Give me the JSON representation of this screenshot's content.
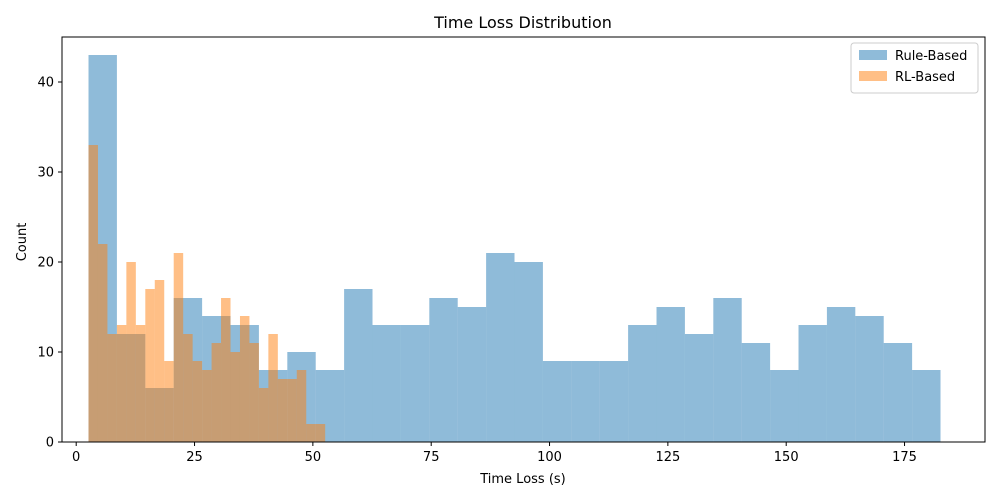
{
  "chart_data": {
    "type": "histogram",
    "title": "Time Loss Distribution",
    "xlabel": "Time Loss (s)",
    "ylabel": "Count",
    "xlim": [
      -3,
      192
    ],
    "ylim": [
      0,
      45
    ],
    "xticks": [
      0,
      25,
      50,
      75,
      100,
      125,
      150,
      175
    ],
    "yticks": [
      0,
      10,
      20,
      30,
      40
    ],
    "legend_position": "top-right",
    "series": [
      {
        "name": "Rule-Based",
        "color": "#1f77b4",
        "opacity": 0.5,
        "bin_edges": [
          2.6,
          8.6,
          14.6,
          20.6,
          26.6,
          32.6,
          38.6,
          44.6,
          50.6,
          56.6,
          62.6,
          68.6,
          74.6,
          80.6,
          86.6,
          92.6,
          98.6,
          104.6,
          110.6,
          116.6,
          122.6,
          128.6,
          134.6,
          140.6,
          146.6,
          152.6,
          158.6,
          164.6,
          170.6,
          176.6,
          182.6
        ],
        "counts": [
          43,
          12,
          6,
          16,
          14,
          13,
          8,
          10,
          8,
          17,
          13,
          13,
          16,
          15,
          21,
          20,
          9,
          9,
          9,
          13,
          15,
          12,
          16,
          11,
          8,
          13,
          15,
          14,
          11,
          8
        ]
      },
      {
        "name": "RL-Based",
        "color": "#ff7f0e",
        "opacity": 0.5,
        "bin_edges": [
          2.6,
          4.6,
          6.6,
          8.6,
          10.6,
          12.6,
          14.6,
          16.6,
          18.6,
          20.6,
          22.6,
          24.6,
          26.6,
          28.6,
          30.6,
          32.6,
          34.6,
          36.6,
          38.6,
          40.6,
          42.6,
          44.6,
          46.6,
          48.6,
          50.6,
          52.6
        ],
        "counts": [
          33,
          22,
          12,
          13,
          20,
          13,
          17,
          18,
          9,
          21,
          12,
          9,
          8,
          11,
          16,
          10,
          14,
          11,
          6,
          12,
          7,
          7,
          8,
          2,
          2
        ]
      }
    ]
  }
}
